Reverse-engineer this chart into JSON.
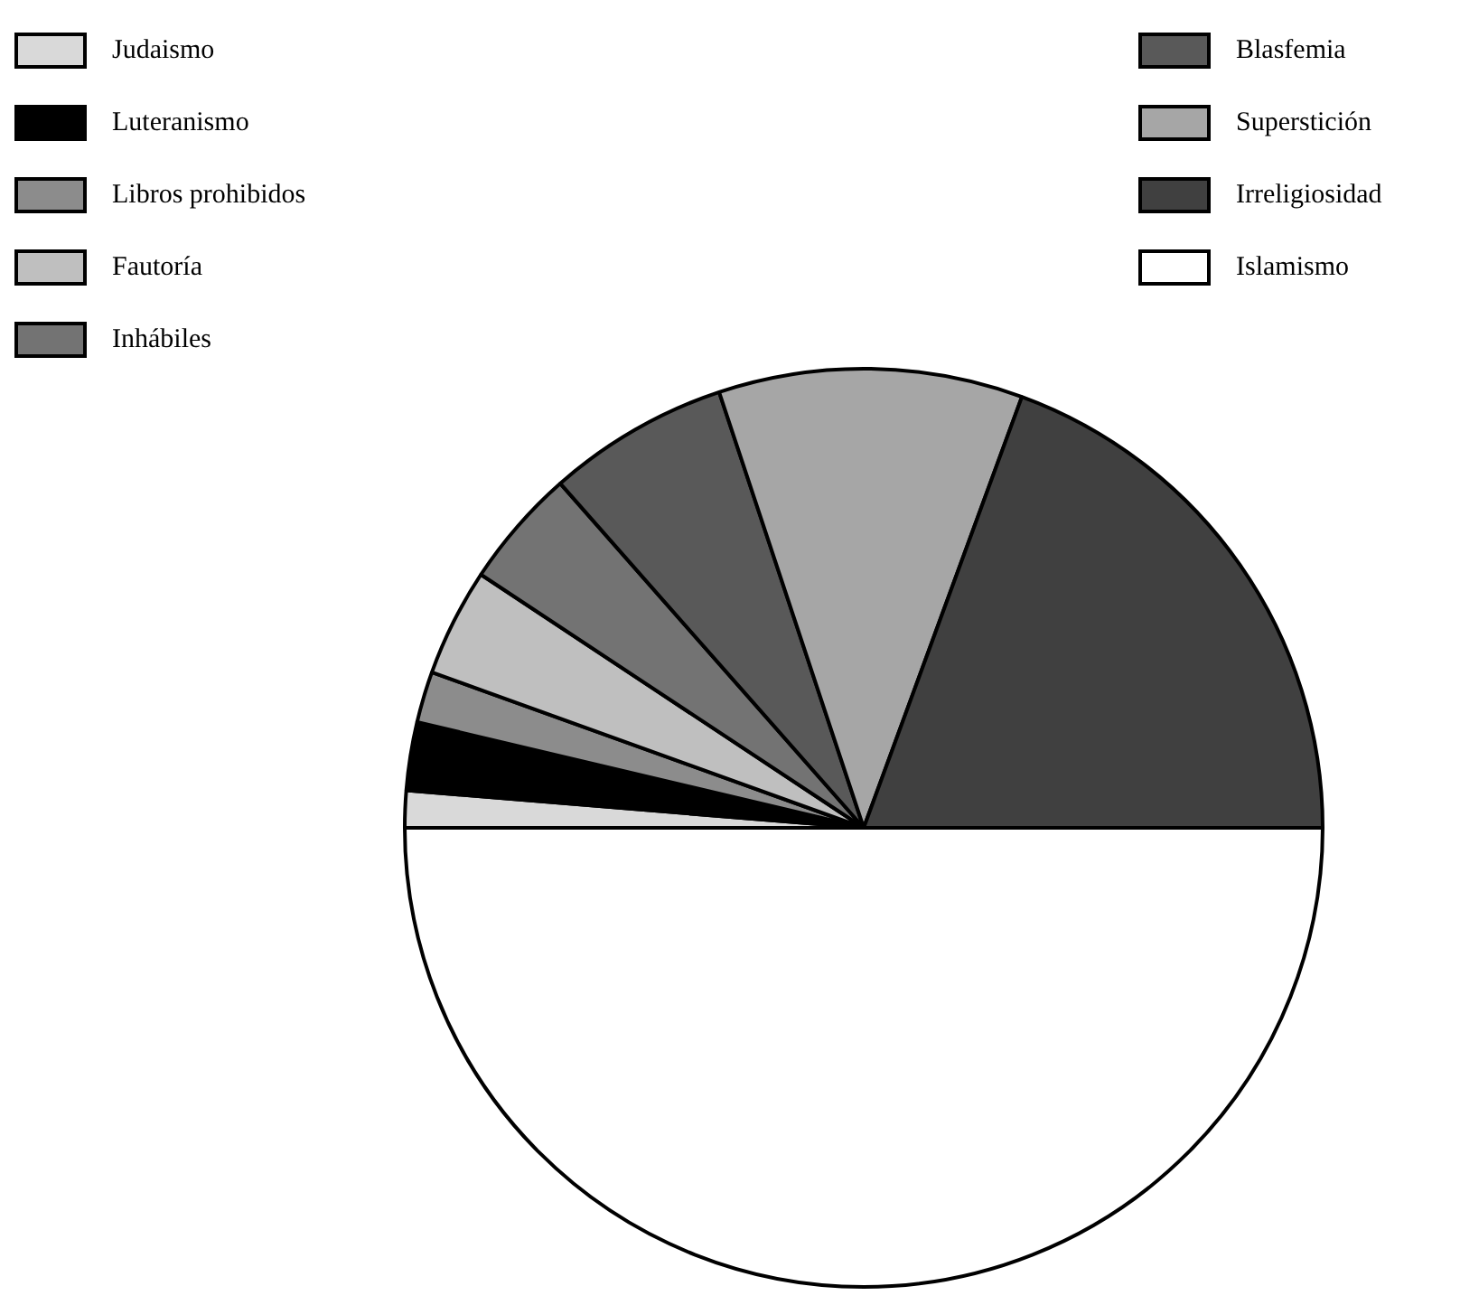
{
  "chart_data": {
    "type": "pie",
    "categories": [
      "Judaismo",
      "Luteranismo",
      "Libros prohibidos",
      "Fautoría",
      "Inhábiles",
      "Blasfemia",
      "Superstición",
      "Irreligiosidad",
      "Islamismo"
    ],
    "values": [
      1.3,
      2.4,
      1.8,
      3.8,
      4.2,
      6.4,
      10.7,
      19.4,
      50
    ],
    "colors": [
      "#d9d9d9",
      "#000000",
      "#8c8c8c",
      "#bfbfbf",
      "#737373",
      "#595959",
      "#a6a6a6",
      "#404040",
      "#ffffff"
    ],
    "legend": "top"
  }
}
